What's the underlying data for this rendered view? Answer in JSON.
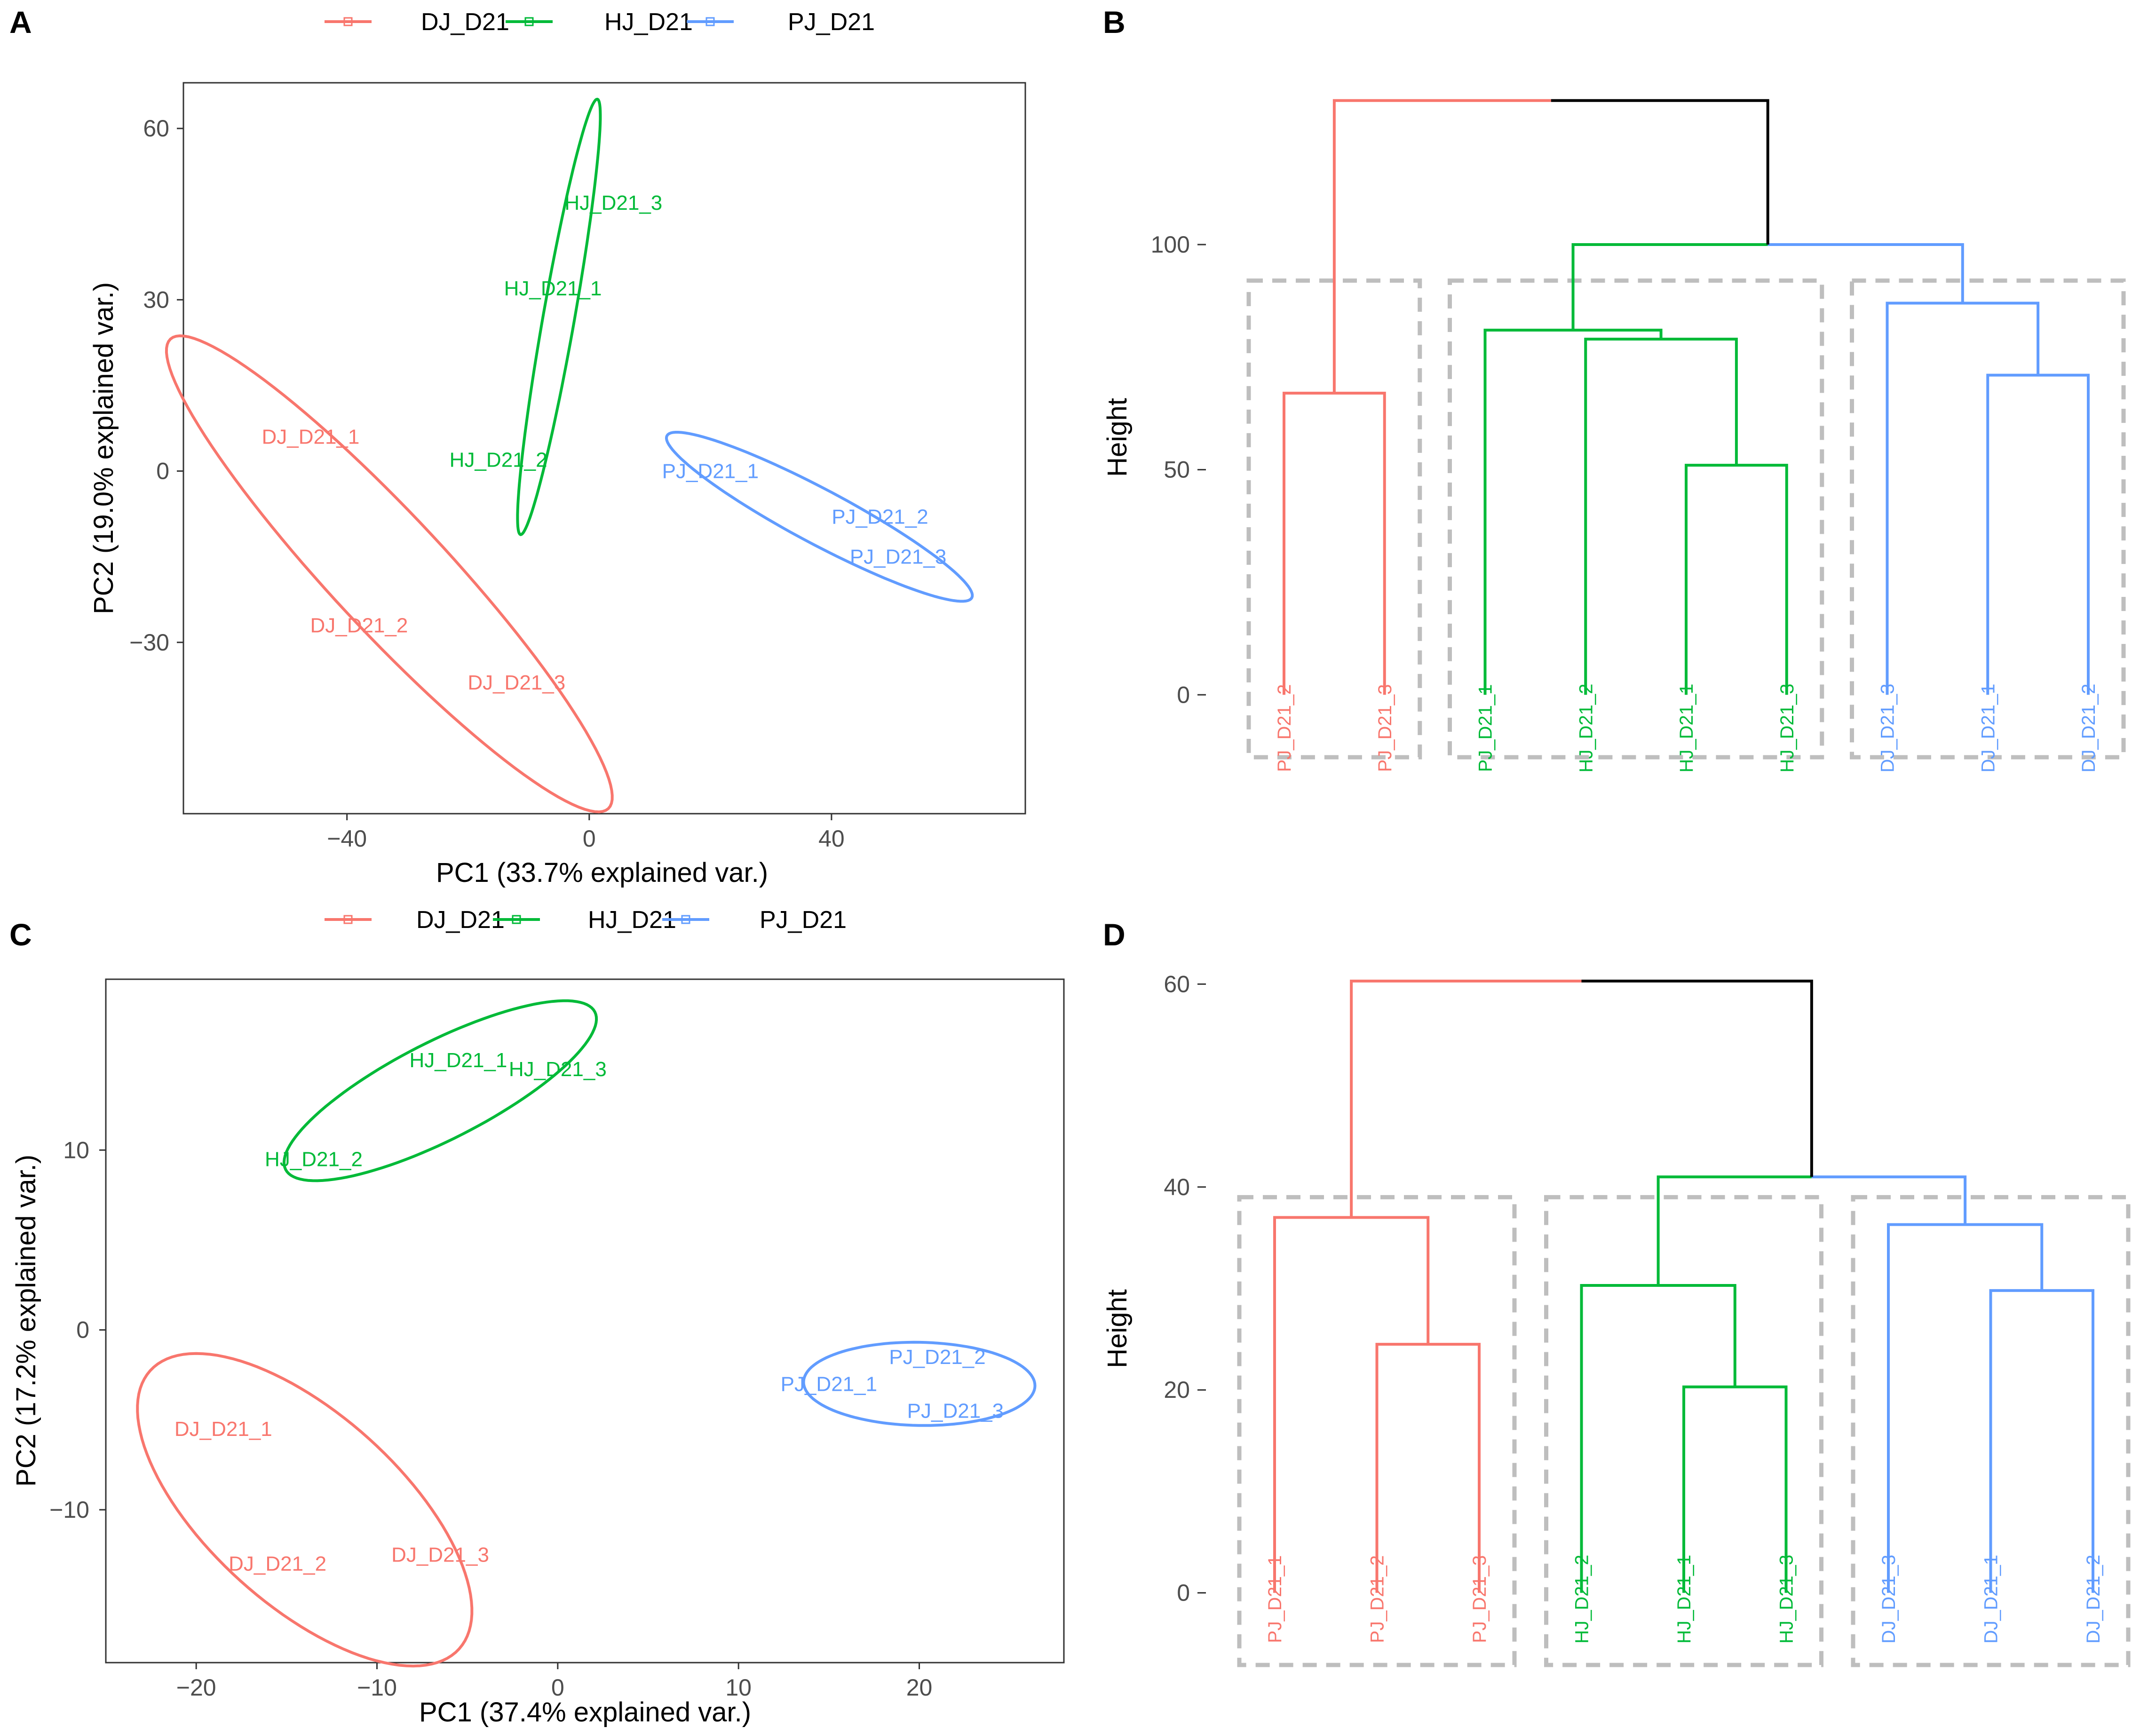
{
  "colors": {
    "DJ": "#F8766D",
    "HJ": "#00BA38",
    "PJ": "#619CFF",
    "root": "#000000",
    "box": "#BEBEBE"
  },
  "chart_data": [
    {
      "panel": "A",
      "type": "scatter",
      "legend": [
        "DJ_D21",
        "HJ_D21",
        "PJ_D21"
      ],
      "legend_position": "top",
      "xlabel": "PC1 (33.7% explained var.)",
      "ylabel": "PC2 (19.0% explained var.)",
      "xlim": [
        -67,
        72
      ],
      "ylim": [
        -60,
        68
      ],
      "xticks": [
        -40,
        0,
        40
      ],
      "yticks": [
        -30,
        0,
        30,
        60
      ],
      "xtick_labels": [
        "−40",
        "0",
        "40"
      ],
      "ytick_labels": [
        "−30",
        "0",
        "30",
        "60"
      ],
      "points": [
        {
          "label": "DJ_D21_1",
          "group": "DJ",
          "x": -46,
          "y": 6
        },
        {
          "label": "DJ_D21_2",
          "group": "DJ",
          "x": -38,
          "y": -27
        },
        {
          "label": "DJ_D21_3",
          "group": "DJ",
          "x": -12,
          "y": -37
        },
        {
          "label": "HJ_D21_1",
          "group": "HJ",
          "x": -6,
          "y": 32
        },
        {
          "label": "HJ_D21_2",
          "group": "HJ",
          "x": -15,
          "y": 2
        },
        {
          "label": "HJ_D21_3",
          "group": "HJ",
          "x": 4,
          "y": 47
        },
        {
          "label": "PJ_D21_1",
          "group": "PJ",
          "x": 20,
          "y": 0
        },
        {
          "label": "PJ_D21_2",
          "group": "PJ",
          "x": 48,
          "y": -8
        },
        {
          "label": "PJ_D21_3",
          "group": "PJ",
          "x": 51,
          "y": -15
        }
      ],
      "ellipses": [
        {
          "group": "DJ",
          "cx": -33,
          "cy": -18,
          "rx": 53,
          "ry": 9.5,
          "angle": -47
        },
        {
          "group": "HJ",
          "cx": -5,
          "cy": 27,
          "rx": 36.5,
          "ry": 2.6,
          "angle": 80
        },
        {
          "group": "PJ",
          "cx": 38,
          "cy": -8,
          "rx": 28.5,
          "ry": 4.5,
          "angle": -28
        }
      ]
    },
    {
      "panel": "B",
      "type": "dendrogram",
      "ylabel": "Height",
      "ylim": [
        -17,
        135
      ],
      "yticks": [
        0,
        50,
        100
      ],
      "leaves": [
        {
          "label": "PJ_D21_2",
          "group": "DJ"
        },
        {
          "label": "PJ_D21_3",
          "group": "DJ"
        },
        {
          "label": "PJ_D21_1",
          "group": "HJ"
        },
        {
          "label": "HJ_D21_2",
          "group": "HJ"
        },
        {
          "label": "HJ_D21_1",
          "group": "HJ"
        },
        {
          "label": "HJ_D21_3",
          "group": "HJ"
        },
        {
          "label": "DJ_D21_3",
          "group": "PJ"
        },
        {
          "label": "DJ_D21_1",
          "group": "PJ"
        },
        {
          "label": "DJ_D21_2",
          "group": "PJ"
        }
      ],
      "merges": [
        {
          "left": 0,
          "right": 1,
          "height": 67,
          "group": "DJ"
        },
        {
          "left": 4,
          "right": 5,
          "height": 51,
          "group": "HJ"
        },
        {
          "left": 3,
          "right": "n1",
          "height": 79,
          "group": "HJ"
        },
        {
          "left": 2,
          "right": "n2",
          "height": 81,
          "group": "HJ"
        },
        {
          "left": 7,
          "right": 8,
          "height": 71,
          "group": "PJ"
        },
        {
          "left": 6,
          "right": "n4",
          "height": 87,
          "group": "PJ"
        },
        {
          "left": "n3",
          "right": "n5",
          "height": 100,
          "group": "split"
        },
        {
          "left": "n0",
          "right": "n6",
          "height": 132,
          "group": "root"
        }
      ],
      "cluster_boxes": [
        [
          0,
          1
        ],
        [
          2,
          5
        ],
        [
          6,
          8
        ]
      ]
    },
    {
      "panel": "C",
      "type": "scatter",
      "legend": [
        "DJ_D21",
        "HJ_D21",
        "PJ_D21"
      ],
      "legend_position": "top",
      "xlabel": "PC1 (37.4% explained var.)",
      "ylabel": "PC2 (17.2% explained var.)",
      "xlim": [
        -25,
        28
      ],
      "ylim": [
        -18.5,
        19.5
      ],
      "xticks": [
        -20,
        -10,
        0,
        10,
        20
      ],
      "yticks": [
        -10,
        0,
        10
      ],
      "xtick_labels": [
        "−20",
        "−10",
        "0",
        "10",
        "20"
      ],
      "ytick_labels": [
        "−10",
        "0",
        "10"
      ],
      "points": [
        {
          "label": "DJ_D21_1",
          "group": "DJ",
          "x": -18.5,
          "y": -5.5
        },
        {
          "label": "DJ_D21_2",
          "group": "DJ",
          "x": -15.5,
          "y": -13
        },
        {
          "label": "DJ_D21_3",
          "group": "DJ",
          "x": -6.5,
          "y": -12.5
        },
        {
          "label": "HJ_D21_1",
          "group": "HJ",
          "x": -5.5,
          "y": 15
        },
        {
          "label": "HJ_D21_2",
          "group": "HJ",
          "x": -13.5,
          "y": 9.5
        },
        {
          "label": "HJ_D21_3",
          "group": "HJ",
          "x": 0,
          "y": 14.5
        },
        {
          "label": "PJ_D21_1",
          "group": "PJ",
          "x": 15,
          "y": -3
        },
        {
          "label": "PJ_D21_2",
          "group": "PJ",
          "x": 21,
          "y": -1.5
        },
        {
          "label": "PJ_D21_3",
          "group": "PJ",
          "x": 22,
          "y": -4.5
        }
      ],
      "ellipses": [
        {
          "group": "DJ",
          "cx": -14,
          "cy": -10,
          "rx": 11.5,
          "ry": 5.3,
          "angle": -42
        },
        {
          "group": "HJ",
          "cx": -6.5,
          "cy": 13.3,
          "rx": 9.6,
          "ry": 2.7,
          "angle": 27
        },
        {
          "group": "PJ",
          "cx": 20,
          "cy": -3,
          "rx": 6.4,
          "ry": 2.3,
          "angle": -1
        }
      ]
    },
    {
      "panel": "D",
      "type": "dendrogram",
      "ylabel": "Height",
      "ylim": [
        -8.5,
        61.5
      ],
      "yticks": [
        0,
        20,
        40,
        60
      ],
      "leaves": [
        {
          "label": "PJ_D21_1",
          "group": "DJ"
        },
        {
          "label": "PJ_D21_2",
          "group": "DJ"
        },
        {
          "label": "PJ_D21_3",
          "group": "DJ"
        },
        {
          "label": "HJ_D21_2",
          "group": "HJ"
        },
        {
          "label": "HJ_D21_1",
          "group": "HJ"
        },
        {
          "label": "HJ_D21_3",
          "group": "HJ"
        },
        {
          "label": "DJ_D21_3",
          "group": "PJ"
        },
        {
          "label": "DJ_D21_1",
          "group": "PJ"
        },
        {
          "label": "DJ_D21_2",
          "group": "PJ"
        }
      ],
      "merges": [
        {
          "left": 1,
          "right": 2,
          "height": 24.5,
          "group": "DJ"
        },
        {
          "left": 0,
          "right": "n0",
          "height": 37,
          "group": "DJ"
        },
        {
          "left": 4,
          "right": 5,
          "height": 20.3,
          "group": "HJ"
        },
        {
          "left": 3,
          "right": "n2",
          "height": 30.3,
          "group": "HJ"
        },
        {
          "left": 7,
          "right": 8,
          "height": 29.8,
          "group": "PJ"
        },
        {
          "left": 6,
          "right": "n4",
          "height": 36.3,
          "group": "PJ"
        },
        {
          "left": "n3",
          "right": "n5",
          "height": 41,
          "group": "split"
        },
        {
          "left": "n1",
          "right": "n6",
          "height": 60.3,
          "group": "root"
        }
      ],
      "cluster_boxes": [
        [
          0,
          2
        ],
        [
          3,
          5
        ],
        [
          6,
          8
        ]
      ]
    }
  ]
}
